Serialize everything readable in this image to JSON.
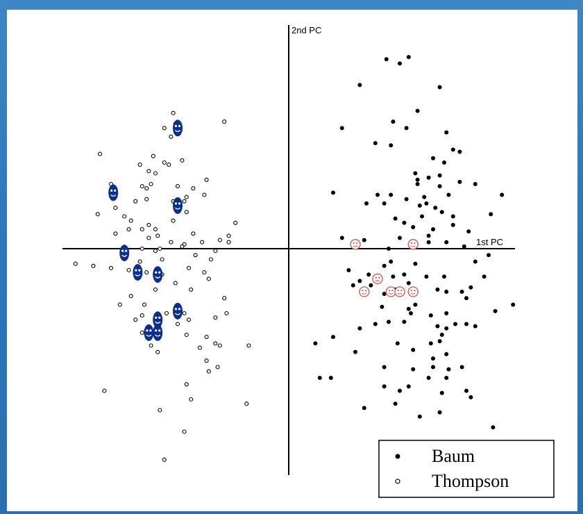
{
  "chart_data": {
    "type": "scatter",
    "xlabel": "1st PC",
    "ylabel": "2nd PC",
    "xlim": [
      -10,
      10
    ],
    "ylim": [
      -10,
      10
    ],
    "grid": false,
    "legend_position": "bottom-right",
    "series": [
      {
        "name": "Baum",
        "marker": "filled-dot",
        "color": "#000000",
        "points": [
          [
            4.4,
            8.8
          ],
          [
            5.0,
            8.6
          ],
          [
            5.4,
            8.9
          ],
          [
            3.2,
            7.6
          ],
          [
            6.8,
            7.5
          ],
          [
            5.8,
            6.4
          ],
          [
            4.7,
            5.9
          ],
          [
            2.4,
            5.6
          ],
          [
            5.3,
            5.6
          ],
          [
            7.1,
            5.4
          ],
          [
            3.9,
            4.9
          ],
          [
            4.6,
            4.8
          ],
          [
            7.4,
            4.6
          ],
          [
            7.7,
            4.5
          ],
          [
            6.5,
            4.2
          ],
          [
            7.0,
            4.0
          ],
          [
            5.7,
            3.5
          ],
          [
            6.8,
            3.4
          ],
          [
            5.8,
            3.2
          ],
          [
            6.3,
            3.3
          ],
          [
            7.7,
            3.1
          ],
          [
            5.8,
            3.0
          ],
          [
            6.8,
            2.9
          ],
          [
            8.4,
            3.0
          ],
          [
            4.0,
            2.5
          ],
          [
            4.6,
            2.5
          ],
          [
            5.3,
            2.3
          ],
          [
            6.2,
            2.1
          ],
          [
            5.9,
            2.0
          ],
          [
            7.2,
            2.5
          ],
          [
            2.0,
            2.6
          ],
          [
            3.5,
            2.1
          ],
          [
            4.3,
            2.1
          ],
          [
            6.1,
            2.4
          ],
          [
            6.6,
            1.9
          ],
          [
            6.9,
            1.7
          ],
          [
            9.6,
            2.5
          ],
          [
            4.8,
            1.4
          ],
          [
            6.0,
            1.5
          ],
          [
            7.4,
            1.5
          ],
          [
            5.2,
            1.2
          ],
          [
            7.4,
            1.1
          ],
          [
            9.1,
            1.6
          ],
          [
            5.6,
            1.0
          ],
          [
            6.5,
            0.9
          ],
          [
            6.3,
            0.6
          ],
          [
            8.1,
            0.8
          ],
          [
            3.4,
            0.4
          ],
          [
            5.0,
            0.5
          ],
          [
            5.7,
            0.3
          ],
          [
            6.3,
            0.3
          ],
          [
            7.1,
            0.3
          ],
          [
            2.4,
            0.5
          ],
          [
            4.5,
            0.0
          ],
          [
            7.9,
            0.1
          ],
          [
            9.0,
            -0.3
          ],
          [
            5.7,
            -0.7
          ],
          [
            8.4,
            -0.6
          ],
          [
            4.3,
            -0.8
          ],
          [
            4.6,
            -0.6
          ],
          [
            5.2,
            -1.2
          ],
          [
            6.2,
            -1.3
          ],
          [
            2.7,
            -1.0
          ],
          [
            3.6,
            -1.2
          ],
          [
            4.7,
            -1.3
          ],
          [
            5.4,
            -1.6
          ],
          [
            7.0,
            -1.3
          ],
          [
            8.8,
            -1.3
          ],
          [
            3.2,
            -1.5
          ],
          [
            3.7,
            -1.7
          ],
          [
            4.8,
            -1.9
          ],
          [
            5.6,
            -1.9
          ],
          [
            7.1,
            -2.0
          ],
          [
            8.2,
            -1.8
          ],
          [
            4.3,
            -2.1
          ],
          [
            6.7,
            -1.9
          ],
          [
            7.8,
            -2.0
          ],
          [
            2.9,
            -1.7
          ],
          [
            10.1,
            -2.6
          ],
          [
            4.2,
            -2.7
          ],
          [
            5.4,
            -2.8
          ],
          [
            5.7,
            -2.6
          ],
          [
            8.0,
            -2.3
          ],
          [
            7.1,
            -3.0
          ],
          [
            9.3,
            -2.9
          ],
          [
            3.9,
            -3.5
          ],
          [
            5.2,
            -3.4
          ],
          [
            6.4,
            -3.1
          ],
          [
            5.5,
            -3.0
          ],
          [
            6.7,
            -3.6
          ],
          [
            7.1,
            -3.7
          ],
          [
            7.5,
            -3.5
          ],
          [
            8.0,
            -3.5
          ],
          [
            8.4,
            -3.6
          ],
          [
            4.5,
            -3.4
          ],
          [
            3.2,
            -3.7
          ],
          [
            4.9,
            -4.4
          ],
          [
            6.8,
            -4.3
          ],
          [
            6.9,
            -4.0
          ],
          [
            6.4,
            -4.4
          ],
          [
            1.2,
            -4.4
          ],
          [
            2.0,
            -4.1
          ],
          [
            5.6,
            -4.7
          ],
          [
            6.5,
            -5.1
          ],
          [
            7.1,
            -4.9
          ],
          [
            3.0,
            -4.8
          ],
          [
            7.2,
            -5.6
          ],
          [
            4.3,
            -5.5
          ],
          [
            5.6,
            -5.6
          ],
          [
            7.8,
            -5.5
          ],
          [
            1.4,
            -6.0
          ],
          [
            6.5,
            -5.5
          ],
          [
            7.1,
            -6.0
          ],
          [
            6.9,
            -6.7
          ],
          [
            4.3,
            -6.4
          ],
          [
            5.4,
            -6.4
          ],
          [
            8.0,
            -6.6
          ],
          [
            6.3,
            -6.0
          ],
          [
            1.9,
            -6.0
          ],
          [
            4.8,
            -7.2
          ],
          [
            6.8,
            -7.6
          ],
          [
            3.4,
            -7.4
          ],
          [
            5.9,
            -7.8
          ],
          [
            9.2,
            -8.3
          ],
          [
            5.0,
            -6.6
          ],
          [
            8.2,
            -6.9
          ]
        ]
      },
      {
        "name": "Thompson",
        "marker": "open-circle",
        "color": "#000000",
        "points": [
          [
            -5.2,
            6.3
          ],
          [
            -5.1,
            5.8
          ],
          [
            -5.3,
            5.2
          ],
          [
            -5.6,
            5.6
          ],
          [
            -8.5,
            4.4
          ],
          [
            -6.7,
            3.9
          ],
          [
            -5.6,
            4.0
          ],
          [
            -6.3,
            3.6
          ],
          [
            -6.0,
            3.5
          ],
          [
            -5.4,
            3.9
          ],
          [
            -8.0,
            3.0
          ],
          [
            -6.6,
            2.9
          ],
          [
            -6.4,
            2.8
          ],
          [
            -6.2,
            3.0
          ],
          [
            -5.0,
            2.9
          ],
          [
            -4.3,
            2.8
          ],
          [
            -3.7,
            3.2
          ],
          [
            -6.9,
            2.2
          ],
          [
            -6.4,
            2.3
          ],
          [
            -5.2,
            2.2
          ],
          [
            -4.7,
            2.2
          ],
          [
            -7.4,
            1.5
          ],
          [
            -7.1,
            1.3
          ],
          [
            -6.3,
            1.1
          ],
          [
            -5.2,
            1.3
          ],
          [
            -6.6,
            0.9
          ],
          [
            -6.0,
            0.9
          ],
          [
            -7.8,
            0.7
          ],
          [
            -7.2,
            0.9
          ],
          [
            -4.3,
            0.7
          ],
          [
            -5.3,
            0.3
          ],
          [
            -4.7,
            0.2
          ],
          [
            -3.9,
            0.3
          ],
          [
            -3.1,
            0.4
          ],
          [
            -5.8,
            0.0
          ],
          [
            -4.8,
            0.1
          ],
          [
            -3.3,
            -0.1
          ],
          [
            -7.4,
            -0.2
          ],
          [
            -6.6,
            0.0
          ],
          [
            -6.0,
            -0.1
          ],
          [
            -2.7,
            0.3
          ],
          [
            -4.2,
            -0.3
          ],
          [
            -3.5,
            -0.5
          ],
          [
            -6.7,
            -0.6
          ],
          [
            -4.5,
            -0.9
          ],
          [
            -2.7,
            0.6
          ],
          [
            -5.7,
            -0.5
          ],
          [
            -9.6,
            -0.7
          ],
          [
            -8.8,
            -0.8
          ],
          [
            -8.0,
            -0.9
          ],
          [
            -7.2,
            -1.0
          ],
          [
            -6.4,
            -1.1
          ],
          [
            -3.8,
            -1.1
          ],
          [
            -5.7,
            -1.2
          ],
          [
            -3.6,
            -1.4
          ],
          [
            -5.1,
            -1.6
          ],
          [
            -6.0,
            -1.9
          ],
          [
            -7.1,
            -2.2
          ],
          [
            -4.4,
            -1.9
          ],
          [
            -2.9,
            -2.3
          ],
          [
            -6.5,
            -2.6
          ],
          [
            -3.3,
            -3.2
          ],
          [
            -7.6,
            -2.6
          ],
          [
            -5.5,
            -3.0
          ],
          [
            -4.7,
            -3.0
          ],
          [
            -6.6,
            -3.1
          ],
          [
            -6.9,
            -3.3
          ],
          [
            -4.5,
            -3.3
          ],
          [
            -2.8,
            -3.0
          ],
          [
            -5.0,
            -3.5
          ],
          [
            -6.6,
            -3.9
          ],
          [
            -3.7,
            -4.1
          ],
          [
            -4.6,
            -4.0
          ],
          [
            -3.3,
            -4.4
          ],
          [
            -1.8,
            -4.5
          ],
          [
            -3.1,
            -4.5
          ],
          [
            -4.0,
            -4.6
          ],
          [
            -6.2,
            -4.5
          ],
          [
            -5.9,
            -4.8
          ],
          [
            -3.7,
            -5.2
          ],
          [
            -3.2,
            -5.5
          ],
          [
            -3.6,
            -5.7
          ],
          [
            -8.3,
            -6.6
          ],
          [
            -4.6,
            -6.3
          ],
          [
            -4.4,
            -7.0
          ],
          [
            -5.8,
            -7.5
          ],
          [
            -1.9,
            -7.2
          ],
          [
            -4.7,
            -8.5
          ],
          [
            -5.6,
            -9.8
          ],
          [
            -2.9,
            5.9
          ],
          [
            -6.1,
            4.3
          ],
          [
            -4.8,
            4.1
          ],
          [
            -4.6,
            1.7
          ],
          [
            -4.6,
            2.4
          ],
          [
            -8.6,
            1.6
          ],
          [
            -5.9,
            0.6
          ],
          [
            -6.3,
            0.5
          ],
          [
            -3.8,
            2.5
          ],
          [
            -7.8,
            1.9
          ],
          [
            -2.4,
            1.2
          ]
        ]
      }
    ],
    "highlights": [
      {
        "marker": "smiley-blue",
        "color": "#0b2f8c",
        "points": [
          [
            -5.0,
            5.6
          ],
          [
            -7.9,
            2.6
          ],
          [
            -5.0,
            2.0
          ],
          [
            -7.4,
            -0.2
          ],
          [
            -6.8,
            -1.1
          ],
          [
            -5.9,
            -1.2
          ],
          [
            -5.0,
            -2.9
          ],
          [
            -5.9,
            -3.3
          ],
          [
            -6.3,
            -3.9
          ],
          [
            -5.9,
            -3.9
          ]
        ]
      },
      {
        "marker": "smiley-red",
        "color": "#d05050",
        "points": [
          [
            3.0,
            0.2
          ],
          [
            5.6,
            0.2
          ],
          [
            4.0,
            -1.4
          ],
          [
            3.4,
            -2.0
          ],
          [
            4.6,
            -2.0
          ],
          [
            5.0,
            -2.0
          ],
          [
            5.6,
            -2.0
          ]
        ]
      }
    ]
  }
}
